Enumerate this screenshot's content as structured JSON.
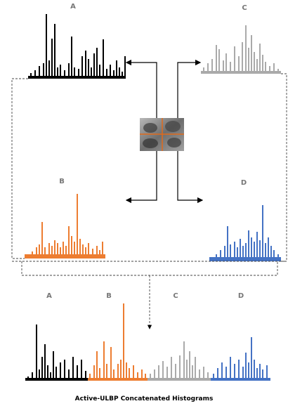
{
  "top_labels": [
    "A",
    "C",
    "B",
    "D"
  ],
  "bottom_labels": [
    "A",
    "B",
    "C",
    "D"
  ],
  "caption": "Active-ULBP Concatenated Histograms"
}
